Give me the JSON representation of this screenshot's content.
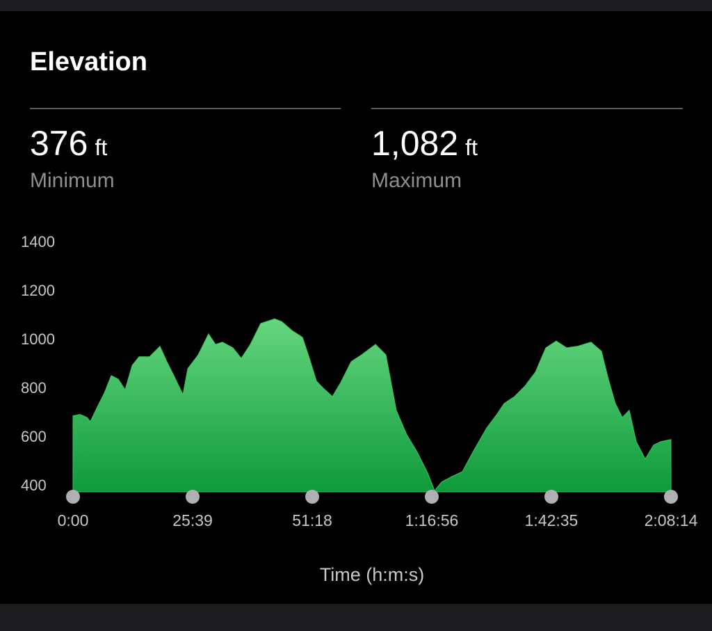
{
  "header": {
    "title": "Elevation"
  },
  "stats": [
    {
      "value": "376",
      "unit": "ft",
      "label": "Minimum"
    },
    {
      "value": "1,082",
      "unit": "ft",
      "label": "Maximum"
    }
  ],
  "chart_data": {
    "type": "area",
    "x_label": "Time (h:m:s)",
    "color": "#34c759",
    "x": [
      0,
      89,
      179,
      224,
      313,
      403,
      492,
      582,
      671,
      761,
      850,
      984,
      1118,
      1208,
      1297,
      1414,
      1476,
      1610,
      1744,
      1834,
      1923,
      2058,
      2165,
      2281,
      2415,
      2594,
      2684,
      2818,
      2952,
      3042,
      3132,
      3221,
      3337,
      3444,
      3579,
      3713,
      3892,
      4026,
      4160,
      4294,
      4429,
      4563,
      4652,
      4742,
      4876,
      5010,
      5144,
      5323,
      5457,
      5547,
      5681,
      5815,
      5949,
      6084,
      6218,
      6352,
      6486,
      6665,
      6799,
      6889,
      6978,
      7068,
      7157,
      7247,
      7363,
      7470,
      7560,
      7694
    ],
    "values": [
      683,
      689,
      677,
      660,
      720,
      777,
      849,
      834,
      791,
      891,
      926,
      926,
      969,
      906,
      849,
      771,
      877,
      934,
      1020,
      977,
      986,
      963,
      920,
      977,
      1063,
      1082,
      1071,
      1034,
      1006,
      920,
      826,
      797,
      763,
      820,
      906,
      934,
      977,
      934,
      706,
      606,
      534,
      449,
      376,
      411,
      434,
      454,
      534,
      634,
      691,
      734,
      763,
      806,
      863,
      963,
      991,
      963,
      969,
      986,
      949,
      834,
      734,
      677,
      706,
      577,
      506,
      563,
      577,
      586
    ],
    "xlim": [
      0,
      7694
    ],
    "xticks": [
      {
        "value": 0,
        "label": "0:00"
      },
      {
        "value": 1539,
        "label": "25:39"
      },
      {
        "value": 3078,
        "label": "51:18"
      },
      {
        "value": 4616,
        "label": "1:16:56"
      },
      {
        "value": 6155,
        "label": "1:42:35"
      },
      {
        "value": 7694,
        "label": "2:08:14"
      }
    ],
    "ylim": [
      371,
      1400
    ],
    "yticks": [
      400,
      600,
      800,
      1000,
      1200,
      1400
    ]
  }
}
